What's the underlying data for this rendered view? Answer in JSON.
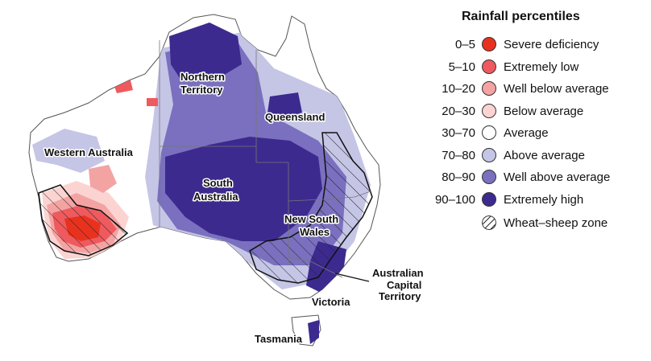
{
  "map": {
    "regions": {
      "wa": "Western Australia",
      "nt_line1": "Northern",
      "nt_line2": "Territory",
      "qld": "Queensland",
      "sa_line1": "South",
      "sa_line2": "Australia",
      "nsw_line1": "New South",
      "nsw_line2": "Wales",
      "act_line1": "Australian",
      "act_line2": "Capital",
      "act_line3": "Territory",
      "vic": "Victoria",
      "tas": "Tasmania"
    },
    "colors": {
      "severe": "#e8321e",
      "extremely_low": "#ef5a5e",
      "well_below": "#f4a3a3",
      "below": "#fbd4d2",
      "average": "#ffffff",
      "above": "#c5c5e6",
      "well_above": "#7a70bf",
      "extremely_high": "#3d2a8f"
    }
  },
  "legend": {
    "title": "Rainfall percentiles",
    "items": [
      {
        "range": "0–5",
        "label": "Severe deficiency",
        "color": "#e8321e"
      },
      {
        "range": "5–10",
        "label": "Extremely low",
        "color": "#ef5a5e"
      },
      {
        "range": "10–20",
        "label": "Well below average",
        "color": "#f4a3a3"
      },
      {
        "range": "20–30",
        "label": "Below average",
        "color": "#fbd4d2"
      },
      {
        "range": "30–70",
        "label": "Average",
        "color": "#ffffff"
      },
      {
        "range": "70–80",
        "label": "Above average",
        "color": "#c5c5e6"
      },
      {
        "range": "80–90",
        "label": "Well above average",
        "color": "#7a70bf"
      },
      {
        "range": "90–100",
        "label": "Extremely high",
        "color": "#3d2a8f"
      }
    ],
    "wheat_sheep": {
      "range": "",
      "label": "Wheat–sheep zone"
    }
  }
}
